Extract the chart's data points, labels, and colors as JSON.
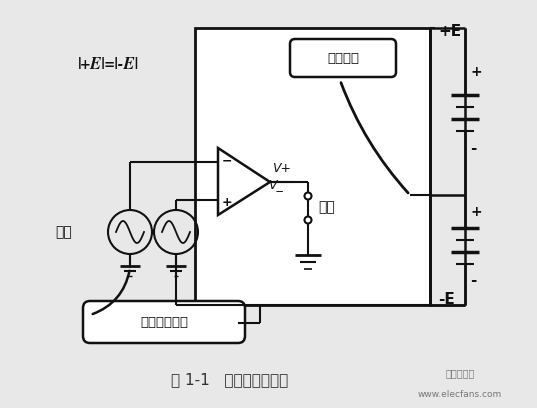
{
  "title": "图 1-1   对称双电源供电",
  "formula": "|+E|=|-E|",
  "label_jizun": "基准电位",
  "label_shuru": "输入",
  "label_shuru_jiao": "输入脚回归线",
  "label_vplus": "V+",
  "label_vminus": "V_",
  "label_shuchu": "输出",
  "label_plus_e": "+E",
  "label_minus_e": "-E",
  "bg_color": "#e8e8e8",
  "line_color": "#111111",
  "box_bg": "#ffffff",
  "watermark1": "电子发烧友",
  "watermark2": "www.elecfans.com"
}
